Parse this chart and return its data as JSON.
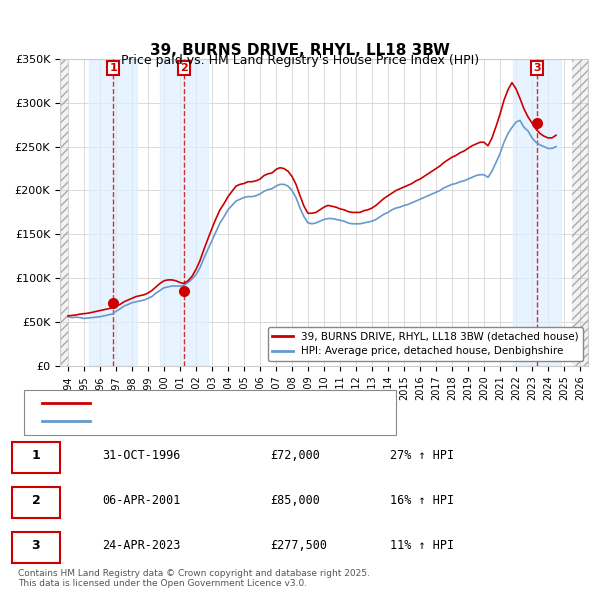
{
  "title": "39, BURNS DRIVE, RHYL, LL18 3BW",
  "subtitle": "Price paid vs. HM Land Registry's House Price Index (HPI)",
  "ylabel": "",
  "xlabel": "",
  "ylim": [
    0,
    350000
  ],
  "yticks": [
    0,
    50000,
    100000,
    150000,
    200000,
    250000,
    300000,
    350000
  ],
  "ytick_labels": [
    "£0",
    "£50K",
    "£100K",
    "£150K",
    "£200K",
    "£250K",
    "£300K",
    "£350K"
  ],
  "xlim_start": 1993.5,
  "xlim_end": 2026.5,
  "years_start": 1994,
  "years_end": 2026,
  "sale_dates": [
    1996.833,
    2001.27,
    2023.32
  ],
  "sale_prices": [
    72000,
    85000,
    277500
  ],
  "sale_labels": [
    "1",
    "2",
    "3"
  ],
  "sale_date_strings": [
    "31-OCT-1996",
    "06-APR-2001",
    "24-APR-2023"
  ],
  "sale_price_strings": [
    "£72,000",
    "£85,000",
    "£277,500"
  ],
  "sale_hpi_strings": [
    "27% ↑ HPI",
    "16% ↑ HPI",
    "11% ↑ HPI"
  ],
  "red_line_color": "#cc0000",
  "blue_line_color": "#6699cc",
  "hatch_color": "#cccccc",
  "shade_color": "#ddeeff",
  "grid_color": "#cccccc",
  "bg_color": "#ffffff",
  "legend_line1": "39, BURNS DRIVE, RHYL, LL18 3BW (detached house)",
  "legend_line2": "HPI: Average price, detached house, Denbighshire",
  "footer": "Contains HM Land Registry data © Crown copyright and database right 2025.\nThis data is licensed under the Open Government Licence v3.0.",
  "hpi_data": {
    "years": [
      1994.0,
      1994.25,
      1994.5,
      1994.75,
      1995.0,
      1995.25,
      1995.5,
      1995.75,
      1996.0,
      1996.25,
      1996.5,
      1996.75,
      1997.0,
      1997.25,
      1997.5,
      1997.75,
      1998.0,
      1998.25,
      1998.5,
      1998.75,
      1999.0,
      1999.25,
      1999.5,
      1999.75,
      2000.0,
      2000.25,
      2000.5,
      2000.75,
      2001.0,
      2001.25,
      2001.5,
      2001.75,
      2002.0,
      2002.25,
      2002.5,
      2002.75,
      2003.0,
      2003.25,
      2003.5,
      2003.75,
      2004.0,
      2004.25,
      2004.5,
      2004.75,
      2005.0,
      2005.25,
      2005.5,
      2005.75,
      2006.0,
      2006.25,
      2006.5,
      2006.75,
      2007.0,
      2007.25,
      2007.5,
      2007.75,
      2008.0,
      2008.25,
      2008.5,
      2008.75,
      2009.0,
      2009.25,
      2009.5,
      2009.75,
      2010.0,
      2010.25,
      2010.5,
      2010.75,
      2011.0,
      2011.25,
      2011.5,
      2011.75,
      2012.0,
      2012.25,
      2012.5,
      2012.75,
      2013.0,
      2013.25,
      2013.5,
      2013.75,
      2014.0,
      2014.25,
      2014.5,
      2014.75,
      2015.0,
      2015.25,
      2015.5,
      2015.75,
      2016.0,
      2016.25,
      2016.5,
      2016.75,
      2017.0,
      2017.25,
      2017.5,
      2017.75,
      2018.0,
      2018.25,
      2018.5,
      2018.75,
      2019.0,
      2019.25,
      2019.5,
      2019.75,
      2020.0,
      2020.25,
      2020.5,
      2020.75,
      2021.0,
      2021.25,
      2021.5,
      2021.75,
      2022.0,
      2022.25,
      2022.5,
      2022.75,
      2023.0,
      2023.25,
      2023.5,
      2023.75,
      2024.0,
      2024.25,
      2024.5
    ],
    "hpi_values": [
      56000,
      55000,
      55500,
      55000,
      54000,
      54500,
      55000,
      55500,
      56000,
      57000,
      58000,
      59000,
      62000,
      65000,
      68000,
      70000,
      72000,
      73000,
      74000,
      75000,
      77000,
      79000,
      83000,
      86000,
      89000,
      90000,
      91000,
      91000,
      91000,
      92000,
      95000,
      99000,
      104000,
      112000,
      123000,
      133000,
      143000,
      153000,
      163000,
      170000,
      178000,
      183000,
      188000,
      190000,
      192000,
      193000,
      193000,
      194000,
      196000,
      199000,
      201000,
      202000,
      205000,
      207000,
      207000,
      205000,
      200000,
      192000,
      180000,
      170000,
      163000,
      162000,
      163000,
      165000,
      167000,
      168000,
      168000,
      167000,
      166000,
      165000,
      163000,
      162000,
      162000,
      162000,
      163000,
      164000,
      165000,
      167000,
      170000,
      173000,
      175000,
      178000,
      180000,
      181000,
      183000,
      184000,
      186000,
      188000,
      190000,
      192000,
      194000,
      196000,
      198000,
      200000,
      203000,
      205000,
      207000,
      208000,
      210000,
      211000,
      213000,
      215000,
      217000,
      218000,
      218000,
      215000,
      222000,
      232000,
      242000,
      255000,
      265000,
      272000,
      278000,
      280000,
      272000,
      268000,
      260000,
      255000,
      252000,
      250000,
      248000,
      248000,
      250000
    ],
    "red_values": [
      57000,
      57500,
      58000,
      59000,
      59500,
      60000,
      61000,
      62000,
      63000,
      64000,
      65000,
      66000,
      68000,
      70000,
      73000,
      75000,
      77000,
      79000,
      80000,
      81000,
      83000,
      86000,
      90000,
      94000,
      97000,
      98000,
      98000,
      97000,
      95000,
      94000,
      97000,
      102000,
      110000,
      120000,
      133000,
      145000,
      157000,
      168000,
      178000,
      185000,
      193000,
      199000,
      205000,
      207000,
      208000,
      210000,
      210000,
      211000,
      213000,
      217000,
      219000,
      220000,
      224000,
      226000,
      225000,
      222000,
      216000,
      207000,
      194000,
      182000,
      174000,
      174000,
      175000,
      178000,
      181000,
      183000,
      182000,
      181000,
      179000,
      178000,
      176000,
      175000,
      175000,
      175000,
      177000,
      178000,
      180000,
      183000,
      187000,
      191000,
      194000,
      197000,
      200000,
      202000,
      204000,
      206000,
      208000,
      211000,
      213000,
      216000,
      219000,
      222000,
      225000,
      228000,
      232000,
      235000,
      238000,
      240000,
      243000,
      245000,
      248000,
      251000,
      253000,
      255000,
      255000,
      251000,
      260000,
      273000,
      287000,
      303000,
      315000,
      323000,
      316000,
      305000,
      293000,
      284000,
      277000,
      270000,
      265000,
      262000,
      260000,
      260000,
      263000
    ]
  }
}
